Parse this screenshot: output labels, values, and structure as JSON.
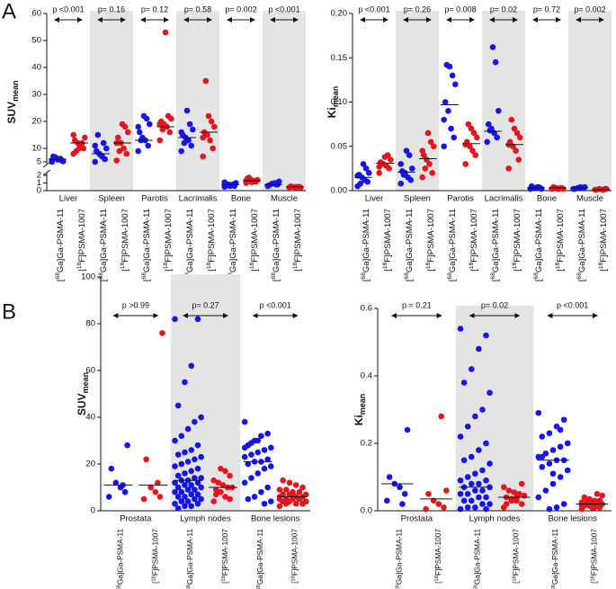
{
  "chart_data": [
    {
      "type": "dot-strip",
      "panel": "A",
      "ylabel": "SUV",
      "ylabel_sub": "mean",
      "ylim_segments": [
        {
          "ylim": [
            0,
            2
          ],
          "yticks": [
            0,
            1,
            2
          ]
        },
        {
          "ylim": [
            5,
            60
          ],
          "yticks": [
            5,
            10,
            20,
            30,
            40,
            50,
            60
          ]
        }
      ],
      "categories": [
        "Liver",
        "Spleen",
        "Parotis",
        "Lacrimalis",
        "Bone",
        "Muscle"
      ],
      "p_values": [
        "p <0.001",
        "p= 0.16",
        "p= 0.12",
        "p= 0.58",
        "p= 0.002",
        "p <0.001"
      ],
      "shaded": [
        false,
        true,
        false,
        true,
        false,
        true
      ],
      "series": [
        {
          "label_parts": [
            "[",
            "68",
            "Ga]Ga-PSMA-11"
          ],
          "color": "#1414f0",
          "values": [
            [
              5,
              5.5,
              6,
              6.5,
              7,
              5.2,
              6.2,
              5.8,
              6.8,
              5.5
            ],
            [
              5,
              6,
              7,
              8,
              9,
              10,
              12,
              7.5,
              15,
              11
            ],
            [
              9,
              11,
              13,
              14,
              16,
              19,
              21,
              22,
              13,
              18
            ],
            [
              9,
              11,
              13,
              14,
              15,
              17,
              19,
              24,
              12,
              16
            ],
            [
              0.5,
              0.6,
              0.7,
              0.8,
              0.9,
              1.0,
              0.8,
              0.6,
              0.7,
              1.1
            ],
            [
              0.6,
              0.8,
              1.0,
              0.9,
              0.7,
              1.2,
              0.8,
              0.9
            ]
          ],
          "medians": [
            6,
            8,
            13,
            14,
            0.8,
            0.8
          ]
        },
        {
          "label_parts": [
            "[",
            "18",
            "F]PSMA-1007"
          ],
          "color": "#e8141c",
          "values": [
            [
              8,
              10,
              11,
              12,
              13,
              14,
              12,
              10,
              9,
              15
            ],
            [
              5.5,
              8,
              10,
              12,
              14,
              16,
              18,
              19,
              9,
              12
            ],
            [
              13,
              16,
              18,
              19,
              20,
              21,
              22,
              53,
              17,
              19
            ],
            [
              7,
              10,
              13,
              15,
              16,
              18,
              20,
              22,
              35,
              14
            ],
            [
              1.0,
              1.2,
              1.3,
              1.5,
              1.6,
              1.4,
              1.2,
              1.1,
              1.7,
              1.3
            ],
            [
              0.4,
              0.5,
              0.45,
              0.5,
              0.55,
              0.4,
              0.5,
              0.45
            ]
          ],
          "medians": [
            12,
            12,
            18,
            16,
            1.3,
            0.5
          ]
        }
      ]
    },
    {
      "type": "dot-strip",
      "ylabel": "Ki",
      "ylabel_sub": "mean",
      "ylim": [
        0,
        0.2
      ],
      "yticks": [
        {
          "value": 0,
          "label": "0.00"
        },
        {
          "value": 0.05,
          "label": "0.05"
        },
        {
          "value": 0.1,
          "label": "0.10"
        },
        {
          "value": 0.15,
          "label": "0.15"
        },
        {
          "value": 0.2,
          "label": "0.20"
        }
      ],
      "categories": [
        "Liver",
        "Spleen",
        "Parotis",
        "Lacrimalis",
        "Bone",
        "Muscle"
      ],
      "p_values": [
        "p <0.001",
        "p= 0.26",
        "p= 0.008",
        "p= 0.02",
        "p= 0.72",
        "p= 0.002"
      ],
      "shaded": [
        false,
        true,
        false,
        true,
        false,
        true
      ],
      "series": [
        {
          "label_parts": [
            "[",
            "68",
            "Ga]Ga-PSMA-11"
          ],
          "color": "#1414f0",
          "values": [
            [
              0.005,
              0.01,
              0.012,
              0.015,
              0.018,
              0.02,
              0.025,
              0.03,
              0.008,
              0.017
            ],
            [
              0.008,
              0.012,
              0.015,
              0.02,
              0.022,
              0.025,
              0.04,
              0.045,
              0.018,
              0.03
            ],
            [
              0.05,
              0.06,
              0.07,
              0.09,
              0.1,
              0.12,
              0.13,
              0.14,
              0.142,
              0.08
            ],
            [
              0.055,
              0.06,
              0.065,
              0.07,
              0.075,
              0.09,
              0.145,
              0.162,
              0.068
            ],
            [
              0.002,
              0.003,
              0.004,
              0.003,
              0.005,
              0.002,
              0.004,
              0.003
            ],
            [
              0.002,
              0.003,
              0.004,
              0.003,
              0.002,
              0.004,
              0.003
            ]
          ],
          "medians": [
            0.015,
            0.021,
            0.097,
            0.067,
            0.003,
            0.003
          ]
        },
        {
          "label_parts": [
            "[",
            "18",
            "F]PSMA-1007"
          ],
          "color": "#e8141c",
          "values": [
            [
              0.02,
              0.025,
              0.028,
              0.03,
              0.032,
              0.035,
              0.04,
              0.038,
              0.03,
              0.027
            ],
            [
              0.015,
              0.02,
              0.03,
              0.035,
              0.04,
              0.05,
              0.055,
              0.065,
              0.025,
              0.045
            ],
            [
              0.03,
              0.04,
              0.045,
              0.05,
              0.055,
              0.06,
              0.065,
              0.07,
              0.075,
              0.052
            ],
            [
              0.025,
              0.035,
              0.045,
              0.05,
              0.055,
              0.06,
              0.065,
              0.07,
              0.08,
              0.052
            ],
            [
              0.002,
              0.003,
              0.002,
              0.003,
              0.004,
              0.002,
              0.003,
              0.002
            ],
            [
              0.001,
              0.002,
              0.001,
              0.002,
              0.001,
              0.002,
              0.001
            ]
          ],
          "medians": [
            0.031,
            0.036,
            0.053,
            0.052,
            0.003,
            0.001
          ]
        }
      ]
    },
    {
      "type": "dot-strip",
      "panel": "B",
      "ylabel": "SUV",
      "ylabel_sub": "mean",
      "ylim": [
        0,
        100
      ],
      "yticks": [
        0,
        20,
        40,
        60,
        80,
        100
      ],
      "categories": [
        "Prostata",
        "Lymph nodes",
        "Bone lesions"
      ],
      "p_values": [
        "p >0.99",
        "p= 0.27",
        "p <0.001"
      ],
      "shaded": [
        false,
        true,
        false
      ],
      "series": [
        {
          "label_parts": [
            "[",
            "68",
            "Ga]Ga-PSMA-11"
          ],
          "color": "#1414f0",
          "values": [
            [
              6,
              8,
              10,
              12,
              18,
              28,
              11
            ],
            [
              82,
              82,
              62,
              55,
              45,
              40,
              38,
              35,
              32,
              30,
              28,
              26,
              25,
              24,
              23,
              22,
              21,
              20,
              19,
              18,
              17,
              16,
              15,
              14,
              14,
              13,
              13,
              12,
              12,
              11,
              11,
              10,
              10,
              9,
              9,
              8,
              8,
              7,
              7,
              6,
              6,
              5,
              5,
              4,
              4,
              3,
              3,
              2,
              2,
              1
            ],
            [
              38,
              33,
              32,
              30,
              28,
              27,
              26,
              25,
              24,
              23,
              22,
              21,
              21,
              20,
              19,
              18,
              16,
              14,
              12,
              10,
              8,
              6,
              5,
              4,
              3,
              30,
              29,
              27
            ]
          ],
          "medians": [
            11,
            13,
            21
          ]
        },
        {
          "label_parts": [
            "[",
            "18",
            "F]PSMA-1007"
          ],
          "color": "#e8141c",
          "values": [
            [
              5,
              6,
              8,
              10,
              22,
              76,
              12
            ],
            [
              4,
              5,
              6,
              8,
              9,
              10,
              10,
              11,
              12,
              13,
              15,
              17,
              18,
              7
            ],
            [
              2,
              3,
              3,
              4,
              4,
              4,
              5,
              5,
              5,
              6,
              6,
              6,
              7,
              7,
              7,
              8,
              8,
              9,
              9,
              10,
              11,
              12,
              13,
              4,
              5,
              6,
              3,
              5
            ]
          ],
          "medians": [
            11,
            10,
            6
          ]
        }
      ]
    },
    {
      "type": "dot-strip",
      "ylabel": "Ki",
      "ylabel_sub": "mean",
      "ylim": [
        0,
        0.6
      ],
      "yticks": [
        {
          "value": 0,
          "label": "0.0"
        },
        {
          "value": 0.2,
          "label": "0.2"
        },
        {
          "value": 0.4,
          "label": "0.4"
        },
        {
          "value": 0.6,
          "label": "0.6"
        }
      ],
      "categories": [
        "Prostata",
        "Lymph nodes",
        "Bone lesions"
      ],
      "p_values": [
        "p = 0.21",
        "p= 0.02",
        "p <0.001"
      ],
      "shaded": [
        false,
        true,
        false
      ],
      "series": [
        {
          "label_parts": [
            "[",
            "68",
            "Ga]Ga-PSMA-11"
          ],
          "color": "#1414f0",
          "values": [
            [
              0.03,
              0.05,
              0.07,
              0.08,
              0.1,
              0.24,
              0.02
            ],
            [
              0.54,
              0.52,
              0.48,
              0.42,
              0.38,
              0.35,
              0.3,
              0.28,
              0.25,
              0.22,
              0.2,
              0.18,
              0.16,
              0.15,
              0.14,
              0.12,
              0.11,
              0.1,
              0.09,
              0.09,
              0.08,
              0.08,
              0.07,
              0.07,
              0.06,
              0.06,
              0.05,
              0.05,
              0.04,
              0.04,
              0.03,
              0.03,
              0.02,
              0.02,
              0.01,
              0.01,
              0.005,
              0.005
            ],
            [
              0.29,
              0.27,
              0.25,
              0.23,
              0.22,
              0.2,
              0.19,
              0.18,
              0.17,
              0.16,
              0.15,
              0.15,
              0.14,
              0.13,
              0.12,
              0.1,
              0.08,
              0.06,
              0.04,
              0.02,
              0.01,
              0.005,
              0.16,
              0.2,
              0.24,
              0.11
            ]
          ],
          "medians": [
            0.08,
            0.07,
            0.15
          ]
        },
        {
          "label_parts": [
            "[",
            "18",
            "F]PSMA-1007"
          ],
          "color": "#e8141c",
          "values": [
            [
              0.005,
              0.01,
              0.02,
              0.03,
              0.05,
              0.06,
              0.28
            ],
            [
              0.01,
              0.02,
              0.03,
              0.035,
              0.04,
              0.045,
              0.05,
              0.055,
              0.06,
              0.07,
              0.08,
              0.04,
              0.03,
              0.02
            ],
            [
              0.005,
              0.01,
              0.01,
              0.015,
              0.015,
              0.02,
              0.02,
              0.02,
              0.025,
              0.025,
              0.03,
              0.03,
              0.035,
              0.04,
              0.045,
              0.05,
              0.01,
              0.02,
              0.015,
              0.025
            ]
          ],
          "medians": [
            0.035,
            0.04,
            0.02
          ]
        }
      ]
    }
  ]
}
